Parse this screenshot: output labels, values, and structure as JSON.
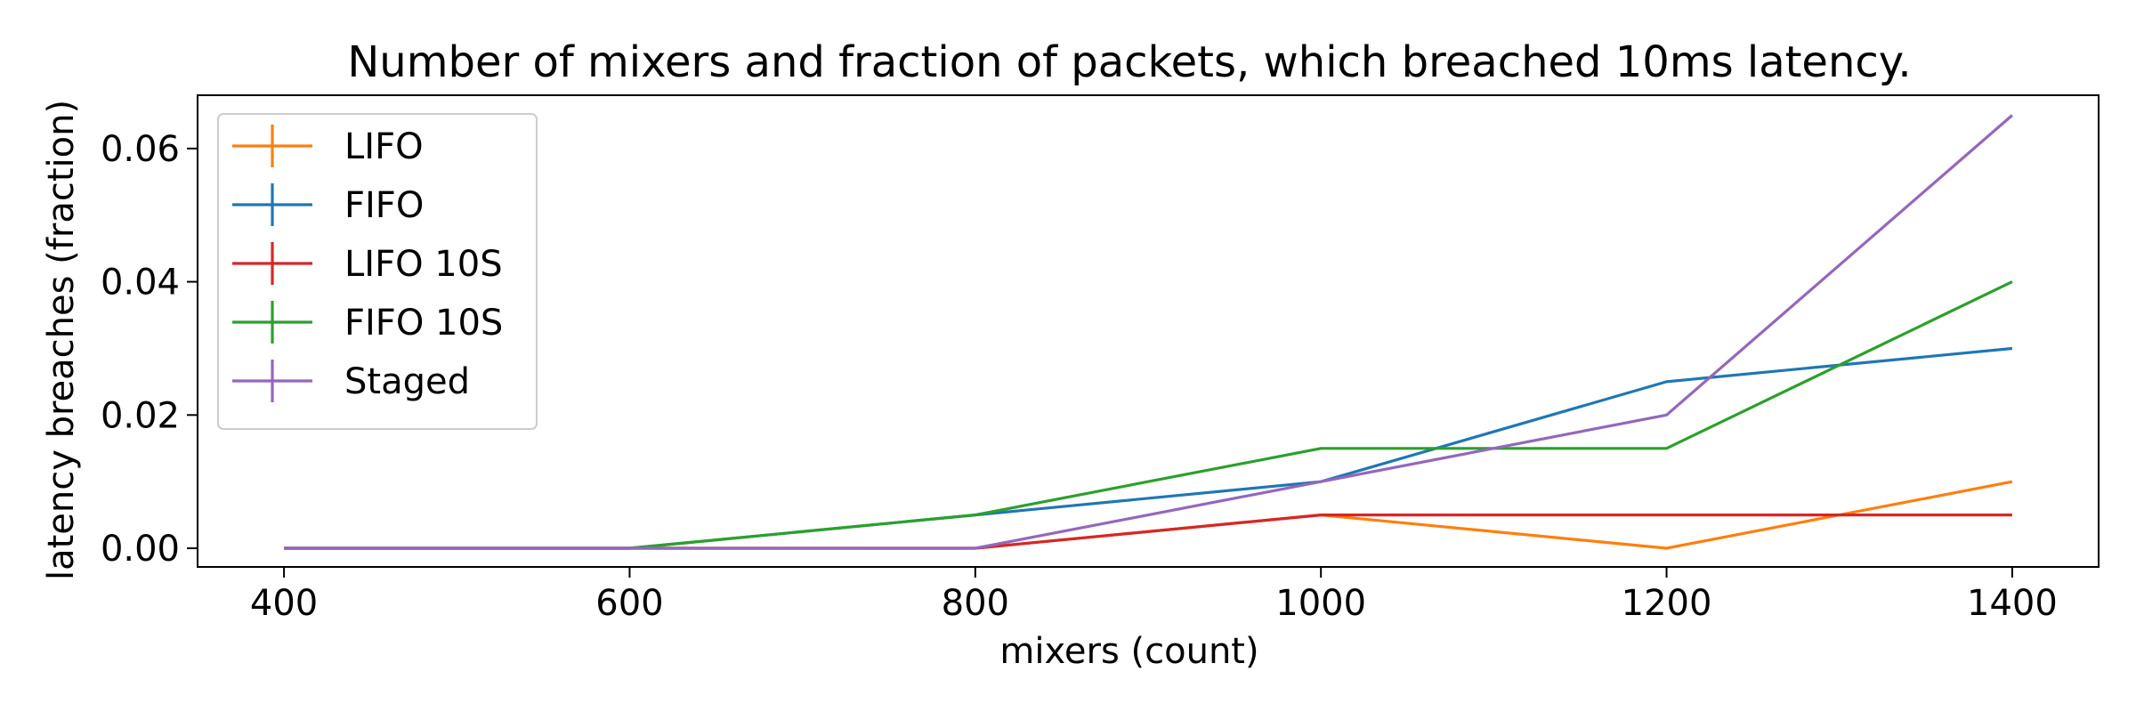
{
  "chart_data": {
    "type": "line",
    "title": "Number of mixers and fraction of packets, which breached 10ms latency.",
    "xlabel": "mixers (count)",
    "ylabel": "latency breaches (fraction)",
    "x": [
      400,
      600,
      800,
      1000,
      1200,
      1400
    ],
    "xticks": [
      400,
      600,
      800,
      1000,
      1200,
      1400
    ],
    "yticks": [
      0.0,
      0.02,
      0.04,
      0.06
    ],
    "ytick_labels": [
      "0.00",
      "0.02",
      "0.04",
      "0.06"
    ],
    "xlim": [
      350,
      1450
    ],
    "ylim": [
      -0.0028,
      0.068
    ],
    "grid": false,
    "legend_position": "upper-left",
    "series": [
      {
        "name": "LIFO",
        "color": "#ff7f0e",
        "values": [
          0,
          0,
          0,
          0.005,
          0,
          0.01
        ]
      },
      {
        "name": "FIFO",
        "color": "#1f77b4",
        "values": [
          0,
          0,
          0.005,
          0.01,
          0.025,
          0.03
        ]
      },
      {
        "name": "LIFO 10S",
        "color": "#d62728",
        "values": [
          0,
          0,
          0,
          0.005,
          0.005,
          0.005
        ]
      },
      {
        "name": "FIFO 10S",
        "color": "#2ca02c",
        "values": [
          0,
          0,
          0.005,
          0.015,
          0.015,
          0.04
        ]
      },
      {
        "name": "Staged",
        "color": "#9467bd",
        "values": [
          0,
          0,
          0,
          0.01,
          0.02,
          0.065
        ]
      }
    ]
  }
}
